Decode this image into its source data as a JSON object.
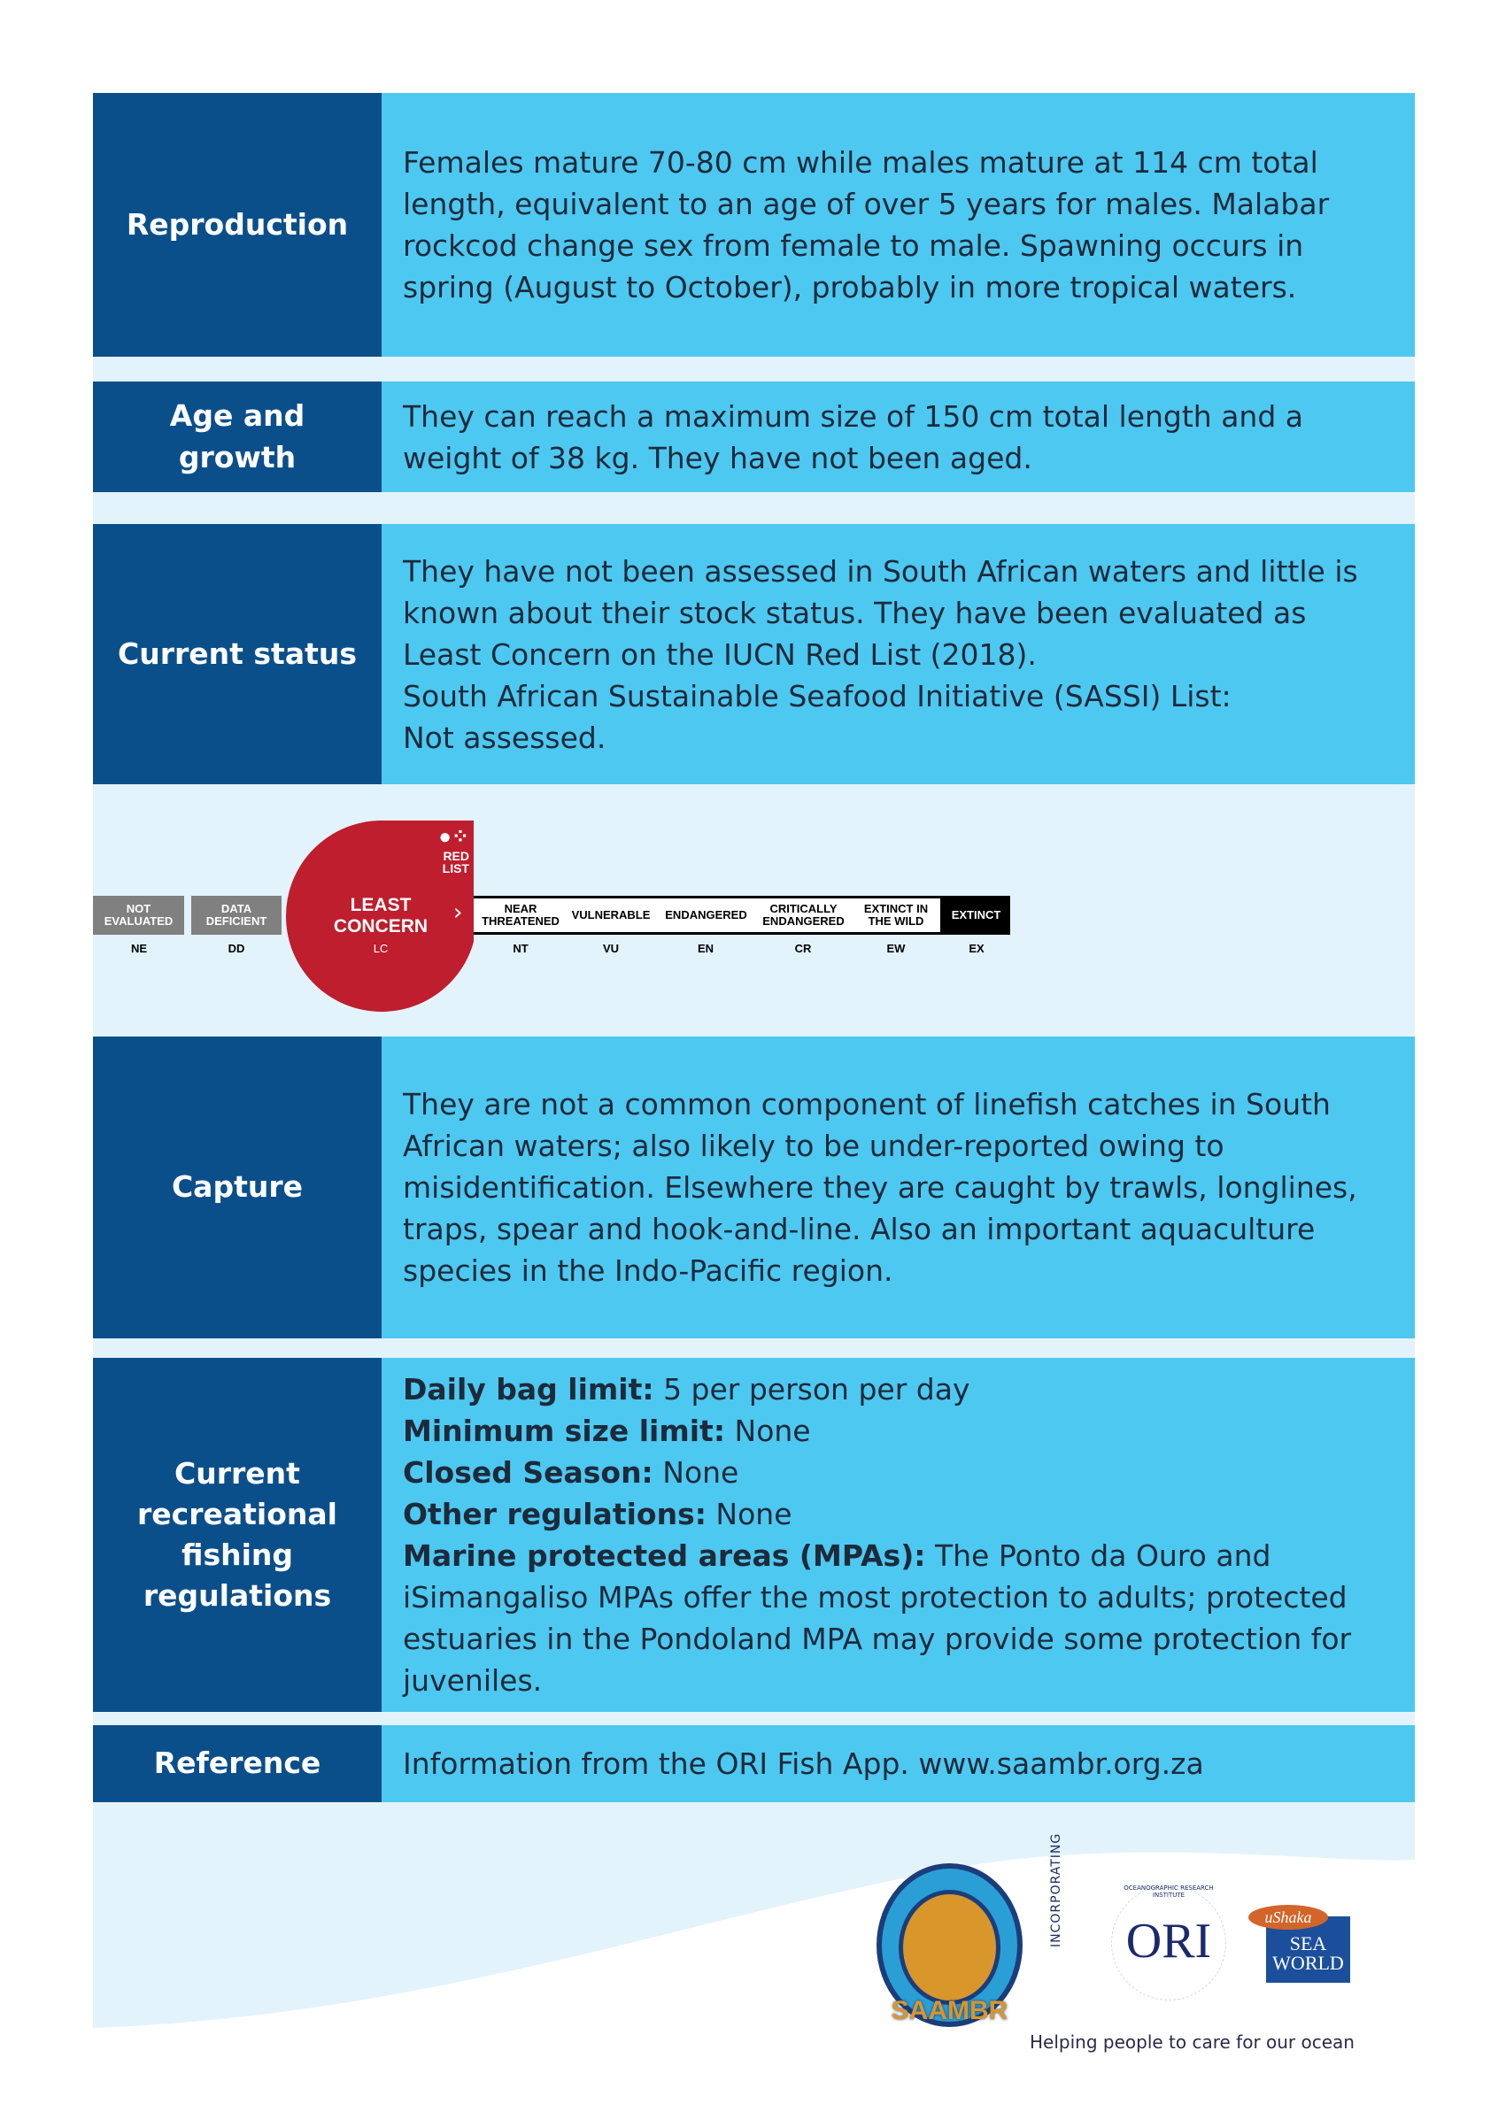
{
  "rows": {
    "reproduction": {
      "label": "Reproduction",
      "text": "Females mature 70-80 cm while males mature at 114 cm total length, equivalent to an age of over 5 years for males. Malabar rockcod change sex from female to male. Spawning occurs in spring (August to October), probably in more tropical waters."
    },
    "age": {
      "label": "Age and growth",
      "text": "They can reach a maximum size of 150 cm total length and a weight of 38 kg. They have not been aged."
    },
    "status": {
      "label": "Current status",
      "text1": "They have not been assessed in South African waters and little is known about their stock status. They have been evaluated as Least Concern on the IUCN Red List (2018).",
      "text2": "South African Sustainable Seafood Initiative (SASSI) List:",
      "text3": "Not assessed."
    },
    "capture": {
      "label": "Capture",
      "text": "They are not a common component of linefish catches in South African waters; also likely to be under-reported owing to misidentification. Elsewhere they are caught by trawls, longlines, traps, spear and hook-and-line. Also an important aquaculture species in the Indo-Pacific region."
    },
    "regs": {
      "label": "Current recreational fishing regulations",
      "bag_k": "Daily bag limit:",
      "bag_v": " 5 per person per day",
      "size_k": "Minimum size limit:",
      "size_v": " None",
      "season_k": "Closed Season:",
      "season_v": " None",
      "other_k": "Other regulations:",
      "other_v": " None",
      "mpa_k": "Marine protected areas (MPAs):",
      "mpa_v": " The Ponto da Ouro and iSimangaliso MPAs offer the most protection to adults; protected estuaries in the Pondoland MPA may provide some protection for juveniles."
    },
    "reference": {
      "label": "Reference",
      "text": "Information from the ORI Fish App.  www.saambr.org.za"
    }
  },
  "iucn": {
    "selected": "LC",
    "categories": [
      {
        "name": "NOT EVALUATED",
        "code": "NE"
      },
      {
        "name": "DATA DEFICIENT",
        "code": "DD"
      },
      {
        "name": "LEAST CONCERN",
        "code": "LC"
      },
      {
        "name": "NEAR THREATENED",
        "code": "NT"
      },
      {
        "name": "VULNERABLE",
        "code": "VU"
      },
      {
        "name": "ENDANGERED",
        "code": "EN"
      },
      {
        "name": "CRITICALLY ENDANGERED",
        "code": "CR"
      },
      {
        "name": "EXTINCT IN THE WILD",
        "code": "EW"
      },
      {
        "name": "EXTINCT",
        "code": "EX"
      }
    ],
    "logo": "RED LIST"
  },
  "footer": {
    "incorporating": "INCORPORATING",
    "saambr": "SAAMBR",
    "ori_ring": "OCEANOGRAPHIC RESEARCH INSTITUTE",
    "ori": "ORI",
    "ushaka": "uShaka",
    "seaworld": "SEA WORLD",
    "tagline": "Helping people to care for our ocean"
  },
  "colors": {
    "dark": "#0b4f8a",
    "light": "#4dc8f1",
    "panel": "#e3f3fb",
    "red": "#be1e2d"
  }
}
